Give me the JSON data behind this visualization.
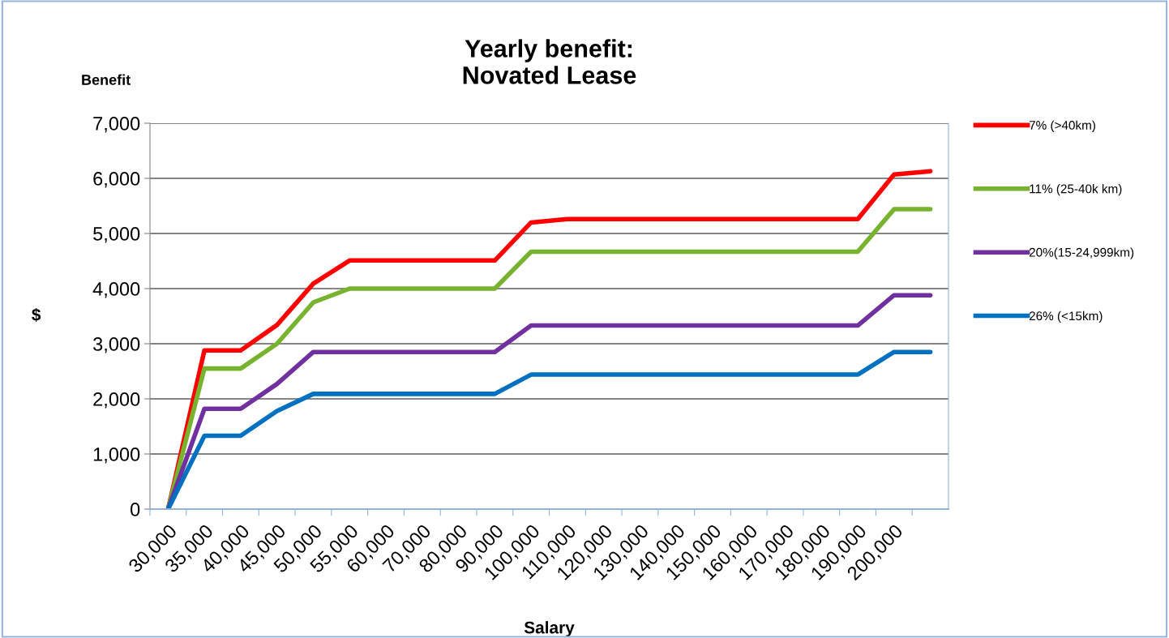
{
  "chart_data": {
    "type": "line",
    "title": "Yearly benefit:\nNovated Lease",
    "xlabel": "Salary",
    "ylabel": "$",
    "annotations": [
      "Benefit"
    ],
    "categories": [
      "30,000",
      "35,000",
      "40,000",
      "45,000",
      "50,000",
      "55,000",
      "60,000",
      "70,000",
      "80,000",
      "90,000",
      "100,000",
      "110,000",
      "120,000",
      "130,000",
      "140,000",
      "150,000",
      "160,000",
      "170,000",
      "180,000",
      "190,000",
      "200,000",
      null
    ],
    "series": [
      {
        "name": "7% (>40km)",
        "color": "#ff0000",
        "values": [
          0,
          2880,
          2880,
          3340,
          4090,
          4510,
          4510,
          4510,
          4510,
          4510,
          5200,
          5260,
          5260,
          5260,
          5260,
          5260,
          5260,
          5260,
          5260,
          5260,
          6070,
          6130
        ]
      },
      {
        "name": "11% (25-40k km)",
        "color": "#77b32f",
        "values": [
          0,
          2550,
          2550,
          3000,
          3750,
          4000,
          4000,
          4000,
          4000,
          4000,
          4670,
          4670,
          4670,
          4670,
          4670,
          4670,
          4670,
          4670,
          4670,
          4670,
          5440,
          5440
        ]
      },
      {
        "name": "20%(15-24,999km)",
        "color": "#7030a0",
        "values": [
          0,
          1820,
          1820,
          2270,
          2850,
          2850,
          2850,
          2850,
          2850,
          2850,
          3330,
          3330,
          3330,
          3330,
          3330,
          3330,
          3330,
          3330,
          3330,
          3330,
          3880,
          3880
        ]
      },
      {
        "name": "26% (<15km)",
        "color": "#0070c0",
        "values": [
          0,
          1330,
          1330,
          1780,
          2090,
          2090,
          2090,
          2090,
          2090,
          2090,
          2440,
          2440,
          2440,
          2440,
          2440,
          2440,
          2440,
          2440,
          2440,
          2440,
          2850,
          2850
        ]
      }
    ],
    "ylim": [
      0,
      7000
    ],
    "yticks": [
      {
        "value": 0,
        "label": "0"
      },
      {
        "value": 1000,
        "label": "1,000"
      },
      {
        "value": 2000,
        "label": "2,000"
      },
      {
        "value": 3000,
        "label": "3,000"
      },
      {
        "value": 4000,
        "label": "4,000"
      },
      {
        "value": 5000,
        "label": "5,000"
      },
      {
        "value": 6000,
        "label": "6,000"
      },
      {
        "value": 7000,
        "label": "7,000"
      }
    ],
    "grid": "y",
    "legend": "right",
    "marker": "none",
    "line_style": "solid"
  }
}
